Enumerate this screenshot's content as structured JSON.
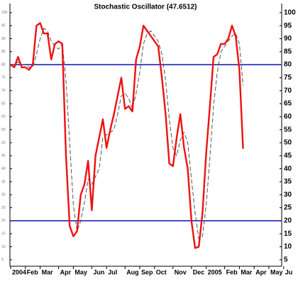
{
  "chart_data": {
    "type": "line",
    "title": "Stochastic Oscillator (47.6512)",
    "categories": [
      "2004",
      null,
      null,
      null,
      "Feb",
      null,
      null,
      null,
      "Mar",
      null,
      null,
      null,
      null,
      "Apr",
      null,
      null,
      null,
      "May",
      null,
      null,
      null,
      null,
      "Jun",
      null,
      null,
      null,
      "Jul",
      null,
      null,
      null,
      null,
      "Aug",
      null,
      null,
      null,
      "Sep",
      null,
      null,
      null,
      "Oct",
      null,
      null,
      null,
      null,
      "Nov",
      null,
      null,
      null,
      null,
      "Dec",
      null,
      null,
      null,
      "2005",
      null,
      null,
      null,
      null,
      "Feb",
      null,
      null,
      null,
      "Mar",
      null,
      null,
      null,
      "Apr",
      null,
      null,
      null,
      "May",
      null,
      null,
      null,
      "Ju"
    ],
    "series": [
      {
        "color": "#ee1111",
        "dashed": false,
        "values": [
          80,
          79,
          83,
          79,
          79,
          78,
          80,
          95,
          96,
          92,
          92,
          82,
          88,
          89,
          88,
          45,
          18,
          14,
          16,
          30,
          34,
          43,
          24,
          45,
          52,
          59,
          48,
          55,
          61,
          68,
          75,
          63,
          64,
          62,
          82,
          87,
          95,
          93,
          91,
          89,
          87,
          75,
          61,
          42,
          41,
          52,
          61,
          48,
          40,
          20,
          9.5,
          10,
          23,
          46,
          64,
          83,
          84,
          88,
          88,
          90,
          95,
          91,
          78,
          47.65,
          null,
          null,
          null,
          null,
          null,
          null,
          null,
          null,
          null,
          null,
          null
        ]
      },
      {
        "color": "#555555",
        "dashed": true,
        "values": [
          80,
          80,
          81,
          80,
          80,
          79,
          79,
          84,
          90,
          94,
          93,
          89,
          87,
          86,
          88,
          74,
          50,
          26,
          16,
          20,
          27,
          36,
          34,
          37,
          40,
          52,
          53,
          54,
          55,
          61,
          68,
          69,
          67,
          63,
          69,
          77,
          88,
          92,
          93,
          91,
          89,
          84,
          74,
          59,
          48,
          45,
          51,
          54,
          50,
          36,
          23,
          13,
          14,
          26,
          44,
          64,
          77,
          85,
          87,
          89,
          91,
          92,
          88,
          72,
          null,
          null,
          null,
          null,
          null,
          null,
          null,
          null,
          null,
          null,
          null
        ]
      }
    ],
    "reference_lines": {
      "values": [
        80,
        20
      ],
      "color": "#2222bb"
    },
    "ylim": [
      2.5,
      103.5
    ],
    "yticks": [
      5,
      10,
      15,
      20,
      25,
      30,
      35,
      40,
      45,
      50,
      55,
      60,
      65,
      70,
      75,
      80,
      85,
      90,
      95,
      100
    ]
  }
}
